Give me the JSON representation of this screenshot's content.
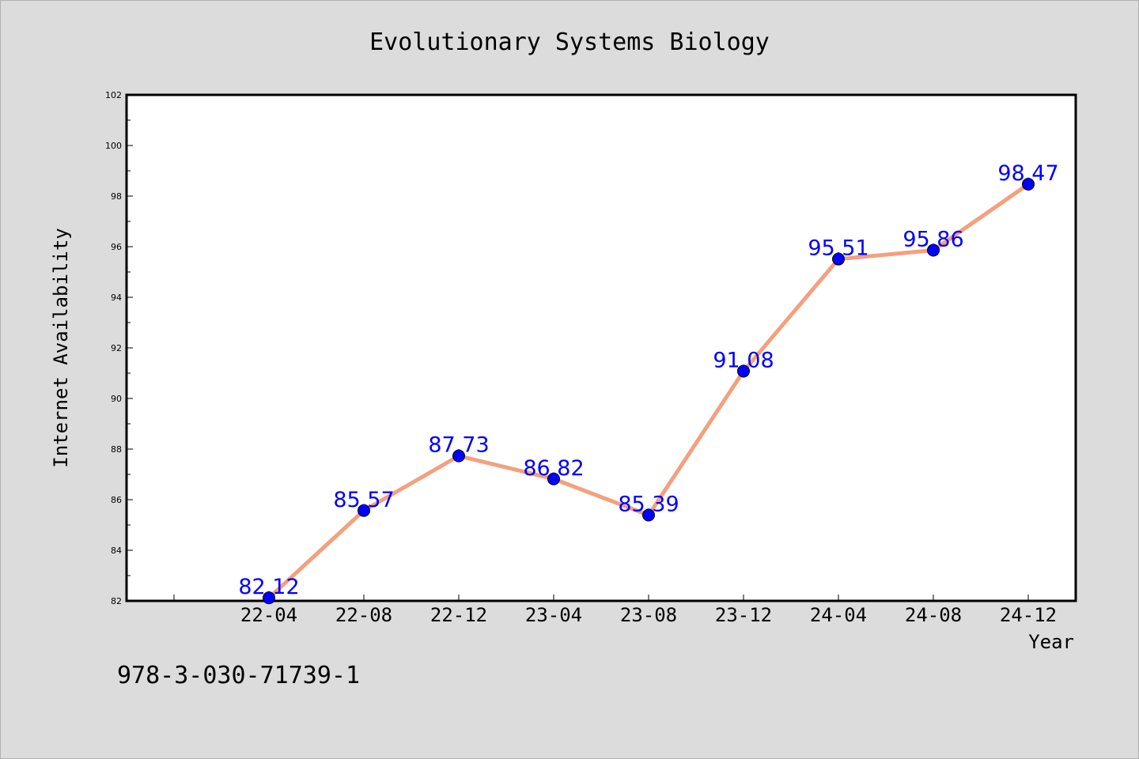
{
  "chart_data": {
    "type": "line",
    "title": "Evolutionary Systems Biology",
    "xlabel": "Year",
    "ylabel": "Internet Availability",
    "categories": [
      "22-04",
      "22-08",
      "22-12",
      "23-04",
      "23-08",
      "23-12",
      "24-04",
      "24-08",
      "24-12"
    ],
    "series": [
      {
        "values": [
          82.12,
          85.57,
          87.73,
          86.82,
          85.39,
          91.08,
          95.51,
          95.86,
          98.47
        ],
        "labels": [
          "82.12",
          "85.57",
          "87.73",
          "86.82",
          "85.39",
          "91.08",
          "95.51",
          "95.86",
          "98.47"
        ]
      }
    ],
    "ylim": [
      82,
      102
    ],
    "yticks": [
      "82",
      "84",
      "86",
      "88",
      "90",
      "92",
      "94",
      "96",
      "98",
      "100",
      "102"
    ],
    "ytick_values": [
      82,
      84,
      86,
      88,
      90,
      92,
      94,
      96,
      98,
      100,
      102
    ],
    "grid": false,
    "colors": {
      "line": "#f4a07e",
      "marker": "#0000ff",
      "data_label": "#0000ff",
      "background": "#dcdcdc",
      "plot_background": "#ffffff"
    }
  },
  "footer_text": "978-3-030-71739-1"
}
